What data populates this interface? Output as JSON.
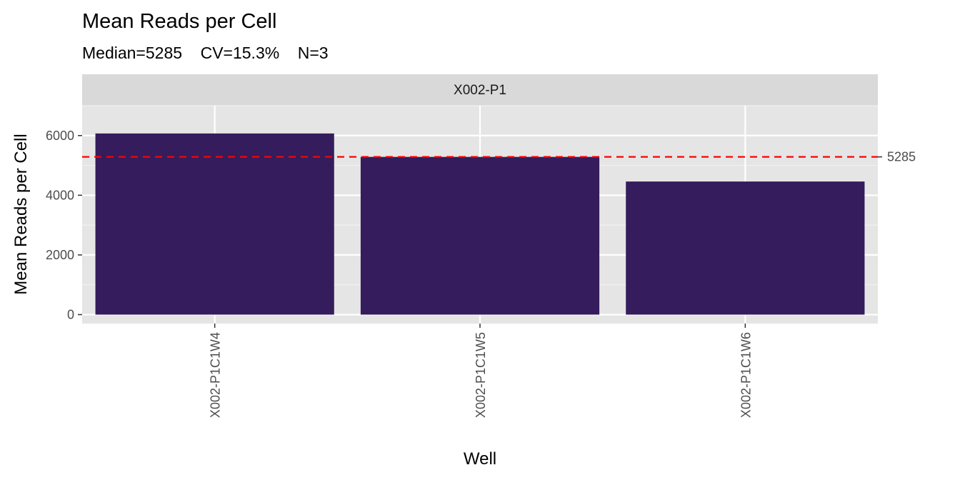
{
  "chart_data": {
    "type": "bar",
    "title": "Mean Reads per Cell",
    "subtitle": "Median=5285    CV=15.3%    N=3",
    "facet": "X002-P1",
    "xlabel": "Well",
    "ylabel": "Mean Reads per Cell",
    "categories": [
      "X002-P1C1W4",
      "X002-P1C1W5",
      "X002-P1C1W6"
    ],
    "values": [
      6070,
      5285,
      4460
    ],
    "yticks": [
      0,
      2000,
      4000,
      6000
    ],
    "ylim": [
      -300,
      7000
    ],
    "median_line": {
      "value": 5285,
      "label": "5285",
      "color": "#ff0000"
    },
    "bar_color": "#351c5c",
    "panel_color": "#e5e5e5",
    "strip_color": "#d9d9d9",
    "grid": true
  }
}
